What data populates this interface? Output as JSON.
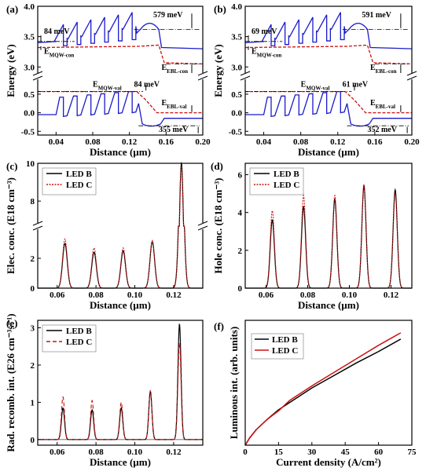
{
  "colors": {
    "ledB": "#000000",
    "ledC": "#cc1111",
    "band": "#1a1acc",
    "ledCrel": "#cc1111",
    "frame": "#000000"
  },
  "chart_data": [
    {
      "panel": "(a)",
      "type": "line",
      "xlabel": "Distance (µm)",
      "ylabel": "Energy (eV)",
      "xlim": [
        0.02,
        0.2
      ],
      "ylim_upper": [
        2.9,
        4.0
      ],
      "ylim_lower": [
        -0.6,
        0.9
      ],
      "xticks": [
        "0.04",
        "0.08",
        "0.12",
        "0.16",
        "0.20"
      ],
      "yticks_upper": [
        "3.0",
        "3.5",
        "4.0"
      ],
      "yticks_lower": [
        "-0.5",
        "0.0",
        "0.5"
      ],
      "annotations": {
        "a1": "84 meV",
        "a2": "579 meV",
        "a3": "E",
        "a3sub": "MQW-con",
        "a4": "E",
        "a4sub": "EBL-con",
        "a5": "E",
        "a5sub": "MQW-val",
        "a6": "84 meV",
        "a7": "E",
        "a7sub": "EBL-val",
        "a8": "355 meV"
      }
    },
    {
      "panel": "(b)",
      "type": "line",
      "xlabel": "Distance (µm)",
      "ylabel": "Energy (eV)",
      "xlim": [
        0.02,
        0.2
      ],
      "ylim_upper": [
        2.9,
        4.0
      ],
      "ylim_lower": [
        -0.6,
        0.9
      ],
      "xticks": [
        "0.04",
        "0.08",
        "0.12",
        "0.16",
        "0.20"
      ],
      "yticks_upper": [
        "3.0",
        "3.5",
        "4.0"
      ],
      "yticks_lower": [
        "-0.5",
        "0.0",
        "0.5"
      ],
      "annotations": {
        "a1": "69 meV",
        "a2": "591 meV",
        "a3": "E",
        "a3sub": "MQW-con",
        "a4": "E",
        "a4sub": "EBL-con",
        "a5": "E",
        "a5sub": "MQW-val",
        "a6": "61 meV",
        "a7": "E",
        "a7sub": "EBL-val",
        "a8": "352 meV"
      }
    },
    {
      "panel": "(c)",
      "type": "line",
      "xlabel": "Distance (µm)",
      "ylabel": "Elec. conc. (E18 cm⁻³)",
      "xlim": [
        0.05,
        0.135
      ],
      "ylim_lower": [
        0,
        4
      ],
      "ylim_upper": [
        6.8,
        10
      ],
      "xticks": [
        "0.06",
        "0.08",
        "0.10",
        "0.12"
      ],
      "yticks_lower": [
        "0",
        "2"
      ],
      "yticks_upper": [
        "8",
        "10"
      ],
      "series": [
        {
          "name": "LED B",
          "peaks_x": [
            0.064,
            0.079,
            0.094,
            0.109,
            0.124
          ],
          "peaks_y": [
            3.0,
            2.4,
            2.5,
            3.1,
            10.0
          ]
        },
        {
          "name": "LED C",
          "peaks_x": [
            0.064,
            0.079,
            0.094,
            0.109,
            0.124
          ],
          "peaks_y": [
            3.3,
            2.7,
            2.7,
            3.2,
            9.8
          ]
        }
      ]
    },
    {
      "panel": "(d)",
      "type": "line",
      "xlabel": "Distance (µm)",
      "ylabel": "Hole conc. (E18 cm⁻³)",
      "xlim": [
        0.05,
        0.13
      ],
      "ylim": [
        0,
        6.6
      ],
      "xticks": [
        "0.06",
        "0.08",
        "0.10",
        "0.12"
      ],
      "yticks": [
        "0",
        "2",
        "4",
        "6"
      ],
      "series": [
        {
          "name": "LED B",
          "peaks_x": [
            0.063,
            0.078,
            0.093,
            0.107,
            0.122
          ],
          "peaks_y": [
            3.6,
            4.3,
            4.7,
            5.4,
            5.2
          ]
        },
        {
          "name": "LED C",
          "peaks_x": [
            0.063,
            0.078,
            0.093,
            0.107,
            0.122
          ],
          "peaks_y": [
            4.1,
            4.9,
            4.9,
            5.5,
            5.0
          ]
        }
      ]
    },
    {
      "panel": "(e)",
      "type": "line",
      "xlabel": "Distance (µm)",
      "ylabel": "Rad. recomb. int. (E26 cm⁻³s⁻¹)",
      "xlim": [
        0.05,
        0.135
      ],
      "ylim": [
        -0.15,
        3.2
      ],
      "xticks": [
        "0.06",
        "0.08",
        "0.10",
        "0.12"
      ],
      "yticks": [
        "0",
        "1",
        "2",
        "3"
      ],
      "series": [
        {
          "name": "LED B",
          "peaks_x": [
            0.063,
            0.078,
            0.093,
            0.108,
            0.123
          ],
          "peaks_y": [
            0.85,
            0.8,
            0.85,
            1.3,
            3.1
          ]
        },
        {
          "name": "LED C",
          "peaks_x": [
            0.063,
            0.078,
            0.093,
            0.108,
            0.123
          ],
          "peaks_y": [
            1.15,
            1.05,
            1.0,
            1.3,
            2.6
          ]
        }
      ]
    },
    {
      "panel": "(f)",
      "type": "line",
      "xlabel": "Current density (A/cm²)",
      "ylabel": "Luminous int. (arb. units)",
      "xlim": [
        0,
        75
      ],
      "ylim": [
        0,
        60
      ],
      "xticks": [
        "0",
        "15",
        "30",
        "45",
        "60",
        "75"
      ],
      "series": [
        {
          "name": "LED B",
          "x": [
            0,
            2,
            5,
            10,
            15,
            20,
            30,
            40,
            50,
            60,
            70
          ],
          "y": [
            0,
            3.5,
            7.5,
            12.5,
            17,
            20.5,
            27.5,
            33.5,
            39.5,
            45,
            51
          ]
        },
        {
          "name": "LED C",
          "x": [
            0,
            2,
            5,
            10,
            15,
            20,
            30,
            40,
            50,
            60,
            70
          ],
          "y": [
            0,
            3.5,
            7.5,
            12.5,
            16.5,
            21.5,
            28.5,
            35,
            41.5,
            48,
            54
          ]
        }
      ]
    }
  ]
}
